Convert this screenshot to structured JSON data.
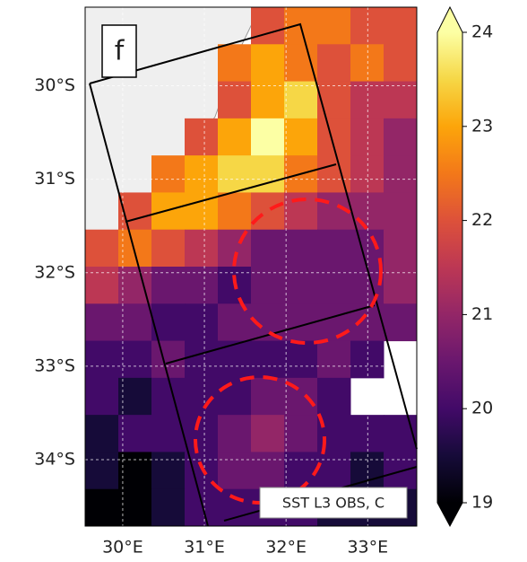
{
  "chart_data": {
    "type": "heatmap",
    "panel_label": "f",
    "annotation": "SST L3 OBS, C",
    "xlim": [
      29.54,
      33.6
    ],
    "ylim": [
      -34.71,
      -29.16
    ],
    "xticks": [
      {
        "value": 30,
        "label": "30°E"
      },
      {
        "value": 31,
        "label": "31°E"
      },
      {
        "value": 32,
        "label": "32°E"
      },
      {
        "value": 33,
        "label": "33°E"
      }
    ],
    "yticks": [
      {
        "value": -30,
        "label": "30°S"
      },
      {
        "value": -31,
        "label": "31°S"
      },
      {
        "value": -32,
        "label": "32°S"
      },
      {
        "value": -33,
        "label": "33°S"
      },
      {
        "value": -34,
        "label": "34°S"
      }
    ],
    "grid": true,
    "colormap": "inferno",
    "clim": [
      19,
      24
    ],
    "cticks": [
      19,
      20,
      21,
      22,
      23,
      24
    ],
    "sst": [
      [
        null,
        null,
        null,
        null,
        null,
        22,
        22.5,
        22.5,
        22,
        22
      ],
      [
        null,
        null,
        null,
        null,
        22.5,
        23,
        22.5,
        22,
        22.5,
        22
      ],
      [
        null,
        null,
        null,
        null,
        22,
        23,
        23.5,
        22,
        21.5,
        21.5
      ],
      [
        null,
        null,
        null,
        22,
        23,
        24,
        23,
        22,
        21.5,
        21
      ],
      [
        null,
        null,
        22.5,
        23,
        23.5,
        23.5,
        22.5,
        22,
        21.5,
        21
      ],
      [
        null,
        22,
        23,
        23,
        22.5,
        22,
        21.5,
        21,
        21,
        21
      ],
      [
        22,
        22.5,
        22,
        21.5,
        21,
        20.5,
        20.5,
        20.5,
        20.5,
        21
      ],
      [
        21.5,
        21,
        20.5,
        20.5,
        20,
        20.5,
        20.5,
        20.5,
        20.5,
        21
      ],
      [
        20.5,
        20.5,
        20,
        20,
        20.5,
        20.5,
        20.5,
        20.5,
        20.5,
        20.5
      ],
      [
        20,
        20,
        20.5,
        20,
        20,
        20,
        20,
        20.5,
        20,
        null
      ],
      [
        20,
        19.5,
        20,
        20,
        20,
        20.5,
        20.5,
        20,
        null,
        null
      ],
      [
        19.5,
        20,
        20,
        20,
        20.5,
        21,
        20.5,
        20,
        20,
        20
      ],
      [
        19.5,
        19,
        19.5,
        20,
        20.5,
        20.5,
        20,
        20,
        19.5,
        20
      ],
      [
        19,
        19,
        19.5,
        20,
        20,
        20,
        20,
        19.5,
        19.5,
        19.5
      ]
    ]
  }
}
